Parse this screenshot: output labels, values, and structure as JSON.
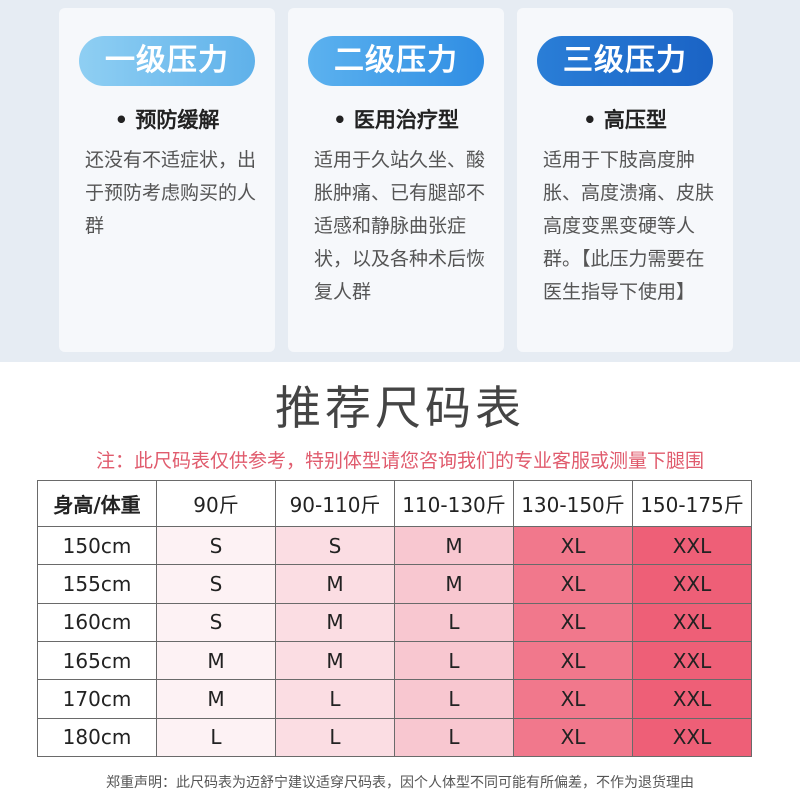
{
  "levels": [
    {
      "badge": "一级压力",
      "type": "• 预防缓解",
      "desc": "还没有不适症状，出于预防考虑购买的人群"
    },
    {
      "badge": "二级压力",
      "type": "• 医用治疗型",
      "desc": "适用于久站久坐、酸胀肿痛、已有腿部不适感和静脉曲张症状，以及各种术后恢复人群"
    },
    {
      "badge": "三级压力",
      "type": "• 高压型",
      "desc": "适用于下肢高度肿胀、高度溃痛、皮肤高度变黑变硬等人群。【此压力需要在医生指导下使用】"
    }
  ],
  "size_chart": {
    "title": "推荐尺码表",
    "note": "注：此尺码表仅供参考，特别体型请您咨询我们的专业客服或测量下腿围",
    "headers": [
      "身高/体重",
      "90斤",
      "90-110斤",
      "110-130斤",
      "130-150斤",
      "150-175斤"
    ],
    "rows": [
      {
        "height": "150cm",
        "sizes": [
          "S",
          "S",
          "M",
          "XL",
          "XXL"
        ]
      },
      {
        "height": "155cm",
        "sizes": [
          "S",
          "M",
          "M",
          "XL",
          "XXL"
        ]
      },
      {
        "height": "160cm",
        "sizes": [
          "S",
          "M",
          "L",
          "XL",
          "XXL"
        ]
      },
      {
        "height": "165cm",
        "sizes": [
          "M",
          "M",
          "L",
          "XL",
          "XXL"
        ]
      },
      {
        "height": "170cm",
        "sizes": [
          "M",
          "L",
          "L",
          "XL",
          "XXL"
        ]
      },
      {
        "height": "180cm",
        "sizes": [
          "L",
          "L",
          "L",
          "XL",
          "XXL"
        ]
      }
    ]
  },
  "disclaimer": "郑重声明：此尺码表为迈舒宁建议适穿尺码表，因个人体型不同可能有所偏差，不作为退货理由"
}
